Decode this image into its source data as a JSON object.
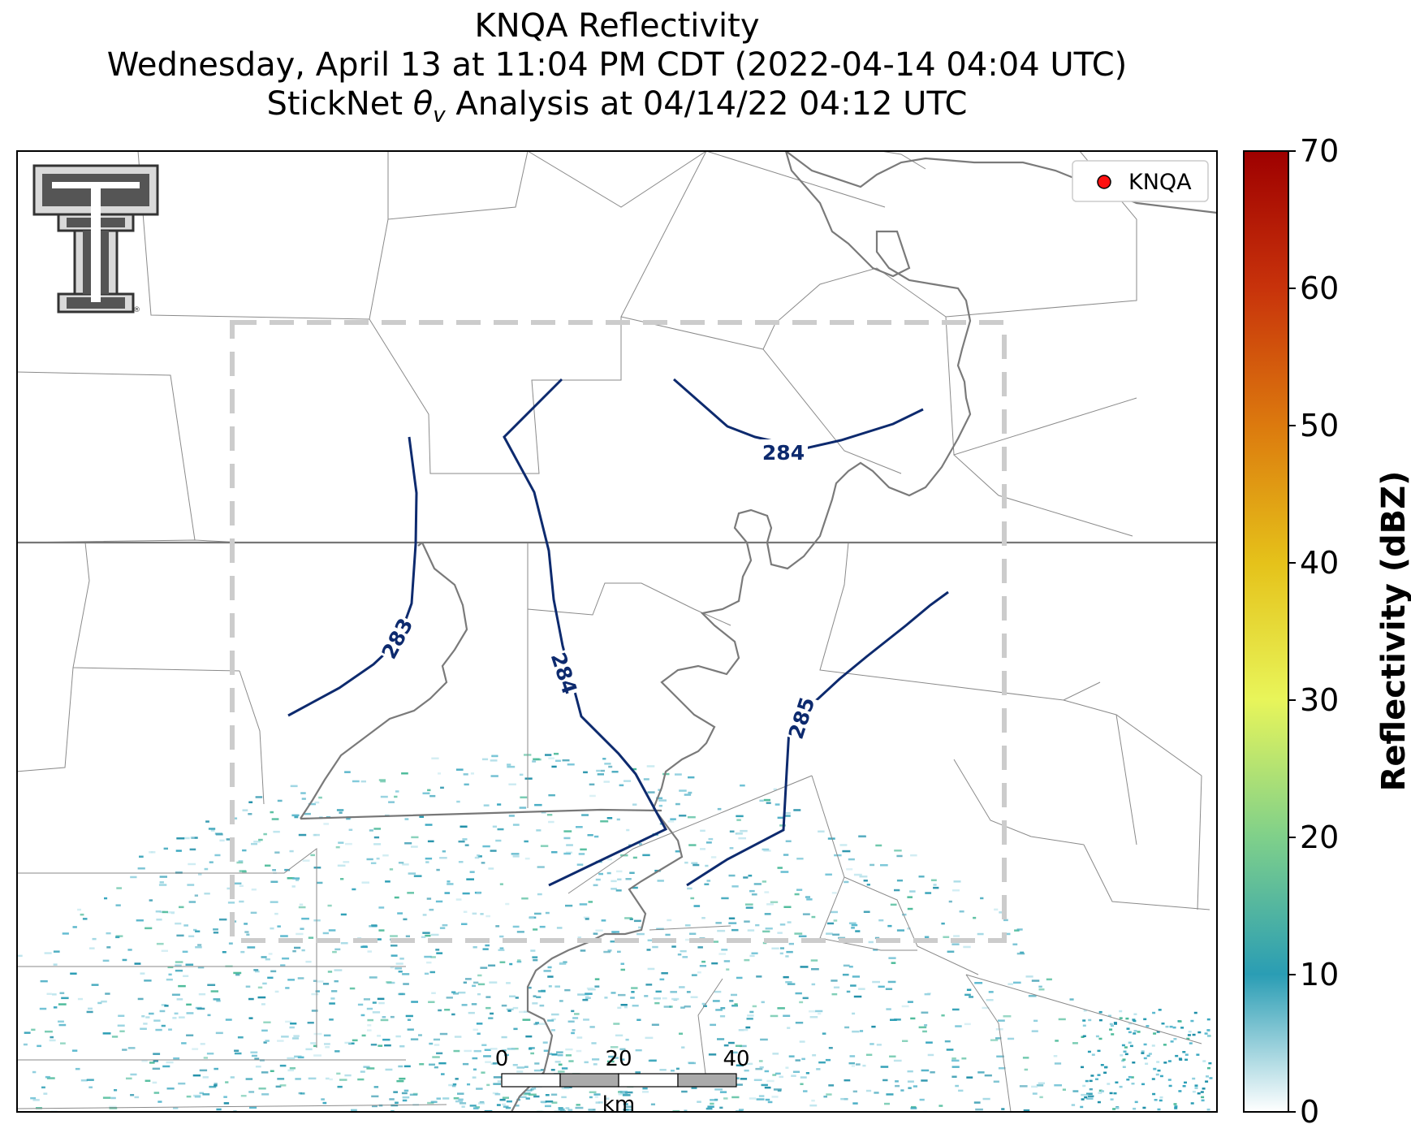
{
  "title": {
    "line1": "KNQA Reflectivity",
    "line2": "Wednesday, April 13 at 11:04 PM CDT (2022-04-14 04:04 UTC)",
    "line3_prefix": "StickNet ",
    "line3_symbol": "θ",
    "line3_subscript": "v",
    "line3_suffix": " Analysis at 04/14/22 04:12 UTC"
  },
  "legend": {
    "label": "KNQA",
    "marker_color": "#ff1010"
  },
  "colorbar": {
    "label": "Reflectivity (dBZ)",
    "ticks": [
      "0",
      "10",
      "20",
      "30",
      "40",
      "50",
      "60",
      "70"
    ],
    "range": [
      0,
      70
    ],
    "colors": [
      "#ffffff",
      "#2a9db4",
      "#7fd08a",
      "#e8f55a",
      "#e5c21a",
      "#dc7a0e",
      "#c8330b",
      "#9e0000"
    ]
  },
  "scale_bar": {
    "ticks": [
      "0",
      "20",
      "40"
    ],
    "unit": "km"
  },
  "contours": [
    {
      "label": "283"
    },
    {
      "label": "284"
    },
    {
      "label": "284"
    },
    {
      "label": "285"
    }
  ],
  "logo": {
    "name": "Texas Tech Double T"
  },
  "colors": {
    "contour": "#0d2a6e",
    "analysis_box": "#c8c8c8",
    "river": "#7a7a7a",
    "county": "#8a8a8a"
  }
}
